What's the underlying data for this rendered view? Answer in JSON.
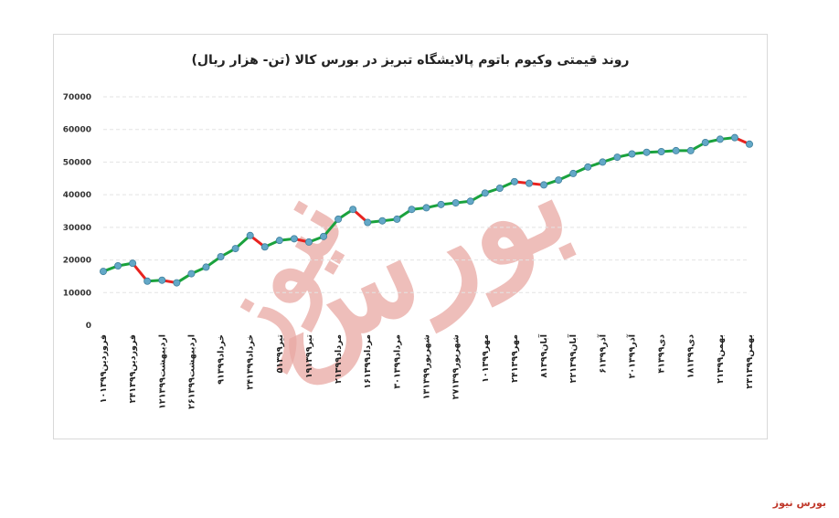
{
  "chart_data": {
    "type": "line",
    "title": "روند قیمتی وکیوم باتوم پالایشگاه تبریز در بورس کالا (تن- هزار ریال)",
    "ylim": [
      0,
      70000
    ],
    "yticks": [
      "0",
      "10000",
      "20000",
      "30000",
      "40000",
      "50000",
      "60000",
      "70000"
    ],
    "grid": true,
    "legend": "none",
    "x": [
      "۱۰فروردین۱۳۹۹",
      "",
      "۲۴فروردین۱۳۹۹",
      "",
      "۱۲اردیبهشت۱۳۹۹",
      "",
      "۲۶اردیبهشت۱۳۹۹",
      "",
      "۹خرداد۱۳۹۹",
      "",
      "۲۴خرداد۱۳۹۹",
      "",
      "۵تیر۱۳۹۹",
      "",
      "۱۹تیر۱۳۹۹",
      "",
      "۲مرداد۱۳۹۹",
      "",
      "۱۶مرداد۱۳۹۹",
      "",
      "۳۰مرداد۱۳۹۹",
      "",
      "۱۳شهریور۱۳۹۹",
      "",
      "۲۷شهریور۱۳۹۹",
      "",
      "۱۰مهر۱۳۹۹",
      "",
      "۲۴مهر۱۳۹۹",
      "",
      "۸آبان۱۳۹۹",
      "",
      "۲۲آبان۱۳۹۹",
      "",
      "۶آذر۱۳۹۹",
      "",
      "۲۰آذر۱۳۹۹",
      "",
      "۴دی۱۳۹۹",
      "",
      "۱۸دی۱۳۹۹",
      "",
      "۲بهمن۱۳۹۹",
      "",
      "۲۳بهمن۱۳۹۹"
    ],
    "values": [
      16500,
      18200,
      19000,
      13500,
      13800,
      13000,
      15800,
      17800,
      21000,
      23500,
      27500,
      24000,
      26000,
      26500,
      25500,
      27200,
      32500,
      35500,
      31500,
      32000,
      32500,
      35500,
      36000,
      37000,
      37500,
      38000,
      40500,
      42000,
      44000,
      43500,
      43000,
      44500,
      46500,
      48500,
      50000,
      51500,
      52500,
      53000,
      53200,
      53500,
      53500,
      56000,
      57000,
      57500,
      55500
    ],
    "up_color": "#1aa23d",
    "down_color": "#e8231f",
    "marker_color": "#63a8c7"
  },
  "watermark": {
    "line1": "بورس",
    "line2": "نیوز"
  },
  "footer": {
    "brand": "بورس نیوز"
  }
}
